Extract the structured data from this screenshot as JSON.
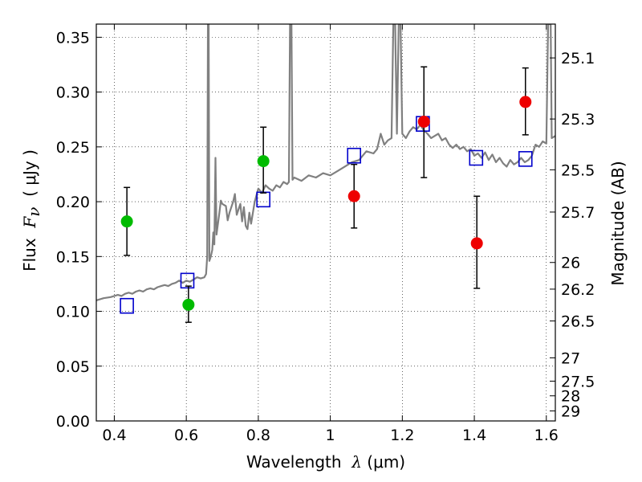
{
  "chart_data": {
    "type": "scatter",
    "xlabel": {
      "pre": "Wavelength  ",
      "sym": "λ",
      "post": " (μm)"
    },
    "ylabel": {
      "pre": "Flux  ",
      "sym": "F",
      "sub": "ν",
      "post": "  ( μJy )"
    },
    "y2label": "Magnitude (AB)",
    "xlim": [
      0.35,
      1.625
    ],
    "ylim": [
      0.0,
      0.362
    ],
    "grid": true,
    "xticks": [
      {
        "v": 0.4,
        "label": "0.4"
      },
      {
        "v": 0.6,
        "label": "0.6"
      },
      {
        "v": 0.8,
        "label": "0.8"
      },
      {
        "v": 1.0,
        "label": "1"
      },
      {
        "v": 1.2,
        "label": "1.2"
      },
      {
        "v": 1.4,
        "label": "1.4"
      },
      {
        "v": 1.6,
        "label": "1.6"
      }
    ],
    "yticks": [
      {
        "v": 0.0,
        "label": "0.00"
      },
      {
        "v": 0.05,
        "label": "0.05"
      },
      {
        "v": 0.1,
        "label": "0.10"
      },
      {
        "v": 0.15,
        "label": "0.15"
      },
      {
        "v": 0.2,
        "label": "0.20"
      },
      {
        "v": 0.25,
        "label": "0.25"
      },
      {
        "v": 0.3,
        "label": "0.30"
      },
      {
        "v": 0.35,
        "label": "0.35"
      }
    ],
    "y2ticks": [
      {
        "mag": 25.1,
        "label": "25.1"
      },
      {
        "mag": 25.3,
        "label": "25.3"
      },
      {
        "mag": 25.5,
        "label": "25.5"
      },
      {
        "mag": 25.7,
        "label": "25.7"
      },
      {
        "mag": 26.0,
        "label": "26"
      },
      {
        "mag": 26.2,
        "label": "26.2"
      },
      {
        "mag": 26.5,
        "label": "26.5"
      },
      {
        "mag": 27.0,
        "label": "27"
      },
      {
        "mag": 27.5,
        "label": "27.5"
      },
      {
        "mag": 28.0,
        "label": "28"
      },
      {
        "mag": 29.0,
        "label": "29"
      }
    ],
    "series": [
      {
        "kind": "line",
        "color": "#808080",
        "points": [
          [
            0.35,
            0.11
          ],
          [
            0.37,
            0.112
          ],
          [
            0.39,
            0.113
          ],
          [
            0.41,
            0.115
          ],
          [
            0.42,
            0.114
          ],
          [
            0.43,
            0.116
          ],
          [
            0.44,
            0.117
          ],
          [
            0.45,
            0.116
          ],
          [
            0.46,
            0.118
          ],
          [
            0.47,
            0.119
          ],
          [
            0.48,
            0.118
          ],
          [
            0.49,
            0.12
          ],
          [
            0.5,
            0.121
          ],
          [
            0.51,
            0.12
          ],
          [
            0.52,
            0.122
          ],
          [
            0.53,
            0.123
          ],
          [
            0.54,
            0.124
          ],
          [
            0.55,
            0.123
          ],
          [
            0.56,
            0.125
          ],
          [
            0.57,
            0.126
          ],
          [
            0.58,
            0.128
          ],
          [
            0.59,
            0.126
          ],
          [
            0.6,
            0.128
          ],
          [
            0.61,
            0.127
          ],
          [
            0.62,
            0.129
          ],
          [
            0.63,
            0.131
          ],
          [
            0.64,
            0.13
          ],
          [
            0.65,
            0.131
          ],
          [
            0.655,
            0.134
          ],
          [
            0.658,
            0.15
          ],
          [
            0.66,
            0.362
          ],
          [
            0.662,
            0.362
          ],
          [
            0.664,
            0.146
          ],
          [
            0.668,
            0.15
          ],
          [
            0.672,
            0.156
          ],
          [
            0.675,
            0.172
          ],
          [
            0.678,
            0.161
          ],
          [
            0.681,
            0.24
          ],
          [
            0.684,
            0.17
          ],
          [
            0.688,
            0.18
          ],
          [
            0.692,
            0.19
          ],
          [
            0.696,
            0.201
          ],
          [
            0.7,
            0.198
          ],
          [
            0.71,
            0.196
          ],
          [
            0.715,
            0.183
          ],
          [
            0.72,
            0.19
          ],
          [
            0.73,
            0.2
          ],
          [
            0.735,
            0.207
          ],
          [
            0.74,
            0.188
          ],
          [
            0.75,
            0.198
          ],
          [
            0.755,
            0.182
          ],
          [
            0.76,
            0.195
          ],
          [
            0.765,
            0.178
          ],
          [
            0.77,
            0.175
          ],
          [
            0.775,
            0.19
          ],
          [
            0.78,
            0.18
          ],
          [
            0.79,
            0.2
          ],
          [
            0.8,
            0.212
          ],
          [
            0.81,
            0.208
          ],
          [
            0.82,
            0.215
          ],
          [
            0.83,
            0.212
          ],
          [
            0.84,
            0.21
          ],
          [
            0.85,
            0.215
          ],
          [
            0.86,
            0.213
          ],
          [
            0.87,
            0.218
          ],
          [
            0.88,
            0.216
          ],
          [
            0.885,
            0.218
          ],
          [
            0.888,
            0.362
          ],
          [
            0.892,
            0.362
          ],
          [
            0.895,
            0.22
          ],
          [
            0.9,
            0.222
          ],
          [
            0.92,
            0.219
          ],
          [
            0.94,
            0.224
          ],
          [
            0.96,
            0.222
          ],
          [
            0.98,
            0.226
          ],
          [
            1.0,
            0.224
          ],
          [
            1.02,
            0.228
          ],
          [
            1.04,
            0.232
          ],
          [
            1.06,
            0.236
          ],
          [
            1.08,
            0.238
          ],
          [
            1.1,
            0.246
          ],
          [
            1.12,
            0.244
          ],
          [
            1.13,
            0.248
          ],
          [
            1.14,
            0.262
          ],
          [
            1.15,
            0.252
          ],
          [
            1.16,
            0.256
          ],
          [
            1.17,
            0.258
          ],
          [
            1.175,
            0.362
          ],
          [
            1.18,
            0.362
          ],
          [
            1.185,
            0.262
          ],
          [
            1.19,
            0.362
          ],
          [
            1.195,
            0.362
          ],
          [
            1.2,
            0.262
          ],
          [
            1.21,
            0.258
          ],
          [
            1.22,
            0.264
          ],
          [
            1.23,
            0.268
          ],
          [
            1.24,
            0.266
          ],
          [
            1.25,
            0.27
          ],
          [
            1.26,
            0.265
          ],
          [
            1.27,
            0.262
          ],
          [
            1.28,
            0.258
          ],
          [
            1.29,
            0.26
          ],
          [
            1.3,
            0.262
          ],
          [
            1.31,
            0.256
          ],
          [
            1.32,
            0.258
          ],
          [
            1.33,
            0.252
          ],
          [
            1.34,
            0.249
          ],
          [
            1.35,
            0.252
          ],
          [
            1.36,
            0.248
          ],
          [
            1.37,
            0.25
          ],
          [
            1.38,
            0.246
          ],
          [
            1.39,
            0.248
          ],
          [
            1.4,
            0.242
          ],
          [
            1.41,
            0.244
          ],
          [
            1.42,
            0.24
          ],
          [
            1.43,
            0.245
          ],
          [
            1.44,
            0.238
          ],
          [
            1.45,
            0.243
          ],
          [
            1.46,
            0.236
          ],
          [
            1.47,
            0.24
          ],
          [
            1.48,
            0.235
          ],
          [
            1.49,
            0.232
          ],
          [
            1.5,
            0.238
          ],
          [
            1.51,
            0.234
          ],
          [
            1.52,
            0.236
          ],
          [
            1.53,
            0.24
          ],
          [
            1.54,
            0.236
          ],
          [
            1.55,
            0.238
          ],
          [
            1.56,
            0.242
          ],
          [
            1.57,
            0.252
          ],
          [
            1.58,
            0.25
          ],
          [
            1.59,
            0.255
          ],
          [
            1.6,
            0.253
          ],
          [
            1.605,
            0.362
          ],
          [
            1.612,
            0.362
          ],
          [
            1.615,
            0.258
          ],
          [
            1.625,
            0.26
          ]
        ]
      },
      {
        "kind": "squares",
        "color": "#0000cc",
        "points": [
          [
            0.435,
            0.105
          ],
          [
            0.603,
            0.128
          ],
          [
            0.814,
            0.202
          ],
          [
            1.066,
            0.242
          ],
          [
            1.257,
            0.271
          ],
          [
            1.405,
            0.24
          ],
          [
            1.542,
            0.239
          ]
        ]
      },
      {
        "kind": "errorbar",
        "color": "#00bb00",
        "points": [
          {
            "x": 0.435,
            "y": 0.182,
            "lo": 0.151,
            "hi": 0.213
          },
          {
            "x": 0.606,
            "y": 0.106,
            "lo": 0.09,
            "hi": 0.123
          },
          {
            "x": 0.814,
            "y": 0.237,
            "lo": 0.208,
            "hi": 0.268
          }
        ]
      },
      {
        "kind": "errorbar",
        "color": "#ee0000",
        "points": [
          {
            "x": 1.066,
            "y": 0.205,
            "lo": 0.176,
            "hi": 0.234
          },
          {
            "x": 1.26,
            "y": 0.273,
            "lo": 0.222,
            "hi": 0.323
          },
          {
            "x": 1.407,
            "y": 0.162,
            "lo": 0.121,
            "hi": 0.205
          },
          {
            "x": 1.542,
            "y": 0.291,
            "lo": 0.261,
            "hi": 0.322
          }
        ]
      }
    ]
  }
}
